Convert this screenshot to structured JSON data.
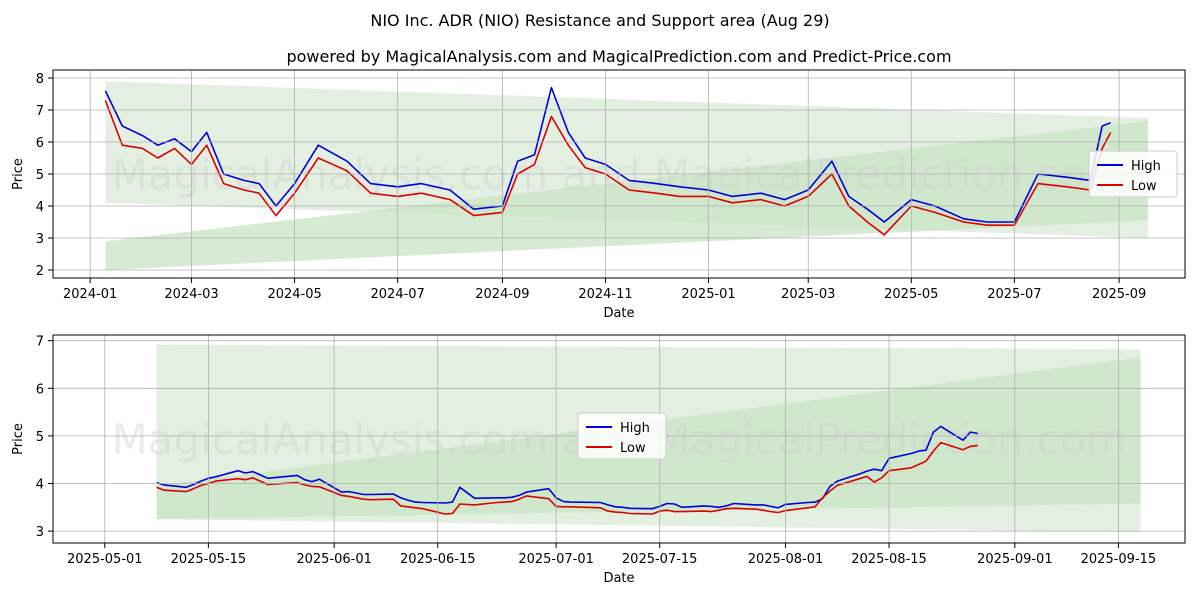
{
  "figure": {
    "title": "NIO Inc. ADR (NIO) Resistance and Support area (Aug 29)",
    "subtitle": "powered by MagicalAnalysis.com and MagicalPrediction.com and Predict-Price.com",
    "watermark": "MagicalAnalysis.com and MagicalPrediction.com"
  },
  "colors": {
    "high": "#0000dd",
    "low": "#dd0000",
    "band_outer": "#dcecd9",
    "band_inner": "#c6e3c2",
    "grid": "#b0b0b0"
  },
  "chart_data": [
    {
      "type": "line",
      "xlabel": "Date",
      "ylabel": "Price",
      "x_ticks": [
        "2024-01",
        "2024-03",
        "2024-05",
        "2024-07",
        "2024-09",
        "2024-11",
        "2025-01",
        "2025-03",
        "2025-05",
        "2025-07",
        "2025-09"
      ],
      "y_ticks": [
        "2",
        "3",
        "4",
        "5",
        "6",
        "7",
        "8"
      ],
      "xlim": [
        "2023-12-10",
        "2025-10-10"
      ],
      "ylim": [
        1.75,
        8.25
      ],
      "grid": true,
      "legend": {
        "position": "right",
        "entries": [
          "High",
          "Low"
        ]
      },
      "bands": [
        {
          "x": [
            "2024-01-10",
            "2025-09-18"
          ],
          "upper": [
            7.9,
            6.75
          ],
          "lower": [
            4.1,
            3.0
          ]
        },
        {
          "x": [
            "2024-01-10",
            "2025-09-18"
          ],
          "upper": [
            2.9,
            6.65
          ],
          "lower": [
            2.0,
            3.55
          ]
        }
      ],
      "series": [
        {
          "name": "High",
          "x": [
            "2024-01-10",
            "2024-01-20",
            "2024-02-01",
            "2024-02-10",
            "2024-02-20",
            "2024-03-01",
            "2024-03-10",
            "2024-03-20",
            "2024-04-01",
            "2024-04-10",
            "2024-04-20",
            "2024-05-01",
            "2024-05-15",
            "2024-06-01",
            "2024-06-15",
            "2024-07-01",
            "2024-07-15",
            "2024-08-01",
            "2024-08-15",
            "2024-09-01",
            "2024-09-10",
            "2024-09-20",
            "2024-09-30",
            "2024-10-10",
            "2024-10-20",
            "2024-11-01",
            "2024-11-15",
            "2024-12-01",
            "2024-12-15",
            "2025-01-01",
            "2025-01-15",
            "2025-02-01",
            "2025-02-15",
            "2025-03-01",
            "2025-03-15",
            "2025-03-25",
            "2025-04-05",
            "2025-04-15",
            "2025-05-01",
            "2025-05-15",
            "2025-06-01",
            "2025-06-15",
            "2025-07-01",
            "2025-07-15",
            "2025-08-01",
            "2025-08-15",
            "2025-08-22",
            "2025-08-27"
          ],
          "values": [
            7.6,
            6.5,
            6.2,
            5.9,
            6.1,
            5.7,
            6.3,
            5.0,
            4.8,
            4.7,
            4.0,
            4.7,
            5.9,
            5.4,
            4.7,
            4.6,
            4.7,
            4.5,
            3.9,
            4.0,
            5.4,
            5.6,
            7.7,
            6.3,
            5.5,
            5.3,
            4.8,
            4.7,
            4.6,
            4.5,
            4.3,
            4.4,
            4.2,
            4.5,
            5.4,
            4.3,
            3.9,
            3.5,
            4.2,
            4.0,
            3.6,
            3.5,
            3.5,
            5.0,
            4.9,
            4.8,
            6.5,
            6.6
          ]
        },
        {
          "name": "Low",
          "x": [
            "2024-01-10",
            "2024-01-20",
            "2024-02-01",
            "2024-02-10",
            "2024-02-20",
            "2024-03-01",
            "2024-03-10",
            "2024-03-20",
            "2024-04-01",
            "2024-04-10",
            "2024-04-20",
            "2024-05-01",
            "2024-05-15",
            "2024-06-01",
            "2024-06-15",
            "2024-07-01",
            "2024-07-15",
            "2024-08-01",
            "2024-08-15",
            "2024-09-01",
            "2024-09-10",
            "2024-09-20",
            "2024-09-30",
            "2024-10-10",
            "2024-10-20",
            "2024-11-01",
            "2024-11-15",
            "2024-12-01",
            "2024-12-15",
            "2025-01-01",
            "2025-01-15",
            "2025-02-01",
            "2025-02-15",
            "2025-03-01",
            "2025-03-15",
            "2025-03-25",
            "2025-04-05",
            "2025-04-15",
            "2025-05-01",
            "2025-05-15",
            "2025-06-01",
            "2025-06-15",
            "2025-07-01",
            "2025-07-15",
            "2025-08-01",
            "2025-08-15",
            "2025-08-22",
            "2025-08-27"
          ],
          "values": [
            7.3,
            5.9,
            5.8,
            5.5,
            5.8,
            5.3,
            5.9,
            4.7,
            4.5,
            4.4,
            3.7,
            4.4,
            5.5,
            5.1,
            4.4,
            4.3,
            4.4,
            4.2,
            3.7,
            3.8,
            5.0,
            5.3,
            6.8,
            5.9,
            5.2,
            5.0,
            4.5,
            4.4,
            4.3,
            4.3,
            4.1,
            4.2,
            4.0,
            4.3,
            5.0,
            4.0,
            3.5,
            3.1,
            4.0,
            3.8,
            3.5,
            3.4,
            3.4,
            4.7,
            4.6,
            4.5,
            5.8,
            6.3
          ]
        }
      ]
    },
    {
      "type": "line",
      "xlabel": "Date",
      "ylabel": "Price",
      "x_ticks": [
        "2025-05-01",
        "2025-05-15",
        "2025-06-01",
        "2025-06-15",
        "2025-07-01",
        "2025-07-15",
        "2025-08-01",
        "2025-08-15",
        "2025-09-01",
        "2025-09-15"
      ],
      "y_ticks": [
        "3",
        "4",
        "5",
        "6",
        "7"
      ],
      "xlim": [
        "2025-04-24",
        "2025-09-24"
      ],
      "ylim": [
        2.75,
        7.12
      ],
      "grid": true,
      "legend": {
        "position": "center",
        "entries": [
          "High",
          "Low"
        ]
      },
      "bands": [
        {
          "x": [
            "2025-05-08",
            "2025-09-18"
          ],
          "upper": [
            6.92,
            6.82
          ],
          "lower": [
            3.25,
            2.98
          ]
        },
        {
          "x": [
            "2025-05-08",
            "2025-09-18"
          ],
          "upper": [
            3.95,
            6.65
          ],
          "lower": [
            3.25,
            3.58
          ]
        }
      ],
      "series": [
        {
          "name": "High",
          "x": [
            "2025-05-08",
            "2025-05-09",
            "2025-05-12",
            "2025-05-13",
            "2025-05-14",
            "2025-05-15",
            "2025-05-16",
            "2025-05-19",
            "2025-05-20",
            "2025-05-21",
            "2025-05-22",
            "2025-05-23",
            "2025-05-27",
            "2025-05-28",
            "2025-05-29",
            "2025-05-30",
            "2025-06-02",
            "2025-06-03",
            "2025-06-04",
            "2025-06-05",
            "2025-06-06",
            "2025-06-09",
            "2025-06-10",
            "2025-06-11",
            "2025-06-12",
            "2025-06-13",
            "2025-06-16",
            "2025-06-17",
            "2025-06-18",
            "2025-06-20",
            "2025-06-23",
            "2025-06-24",
            "2025-06-25",
            "2025-06-26",
            "2025-06-27",
            "2025-06-30",
            "2025-07-01",
            "2025-07-02",
            "2025-07-03",
            "2025-07-07",
            "2025-07-08",
            "2025-07-09",
            "2025-07-10",
            "2025-07-11",
            "2025-07-14",
            "2025-07-15",
            "2025-07-16",
            "2025-07-17",
            "2025-07-18",
            "2025-07-21",
            "2025-07-22",
            "2025-07-23",
            "2025-07-24",
            "2025-07-25",
            "2025-07-28",
            "2025-07-29",
            "2025-07-30",
            "2025-07-31",
            "2025-08-01",
            "2025-08-04",
            "2025-08-05",
            "2025-08-06",
            "2025-08-07",
            "2025-08-08",
            "2025-08-11",
            "2025-08-12",
            "2025-08-13",
            "2025-08-14",
            "2025-08-15",
            "2025-08-18",
            "2025-08-19",
            "2025-08-20",
            "2025-08-21",
            "2025-08-22",
            "2025-08-25",
            "2025-08-26",
            "2025-08-27"
          ],
          "values": [
            4.02,
            3.97,
            3.92,
            3.98,
            4.05,
            4.11,
            4.14,
            4.27,
            4.22,
            4.25,
            4.18,
            4.11,
            4.17,
            4.08,
            4.04,
            4.09,
            3.82,
            3.83,
            3.8,
            3.77,
            3.77,
            3.78,
            3.7,
            3.65,
            3.61,
            3.6,
            3.59,
            3.61,
            3.92,
            3.69,
            3.7,
            3.7,
            3.71,
            3.75,
            3.82,
            3.89,
            3.7,
            3.62,
            3.61,
            3.6,
            3.55,
            3.51,
            3.5,
            3.48,
            3.47,
            3.52,
            3.58,
            3.57,
            3.5,
            3.53,
            3.52,
            3.5,
            3.53,
            3.58,
            3.55,
            3.55,
            3.52,
            3.49,
            3.56,
            3.6,
            3.61,
            3.68,
            3.94,
            4.05,
            4.2,
            4.26,
            4.3,
            4.27,
            4.53,
            4.63,
            4.68,
            4.7,
            5.08,
            5.2,
            4.91,
            5.08,
            5.05
          ]
        },
        {
          "name": "Low",
          "x": [
            "2025-05-08",
            "2025-05-09",
            "2025-05-12",
            "2025-05-13",
            "2025-05-14",
            "2025-05-15",
            "2025-05-16",
            "2025-05-19",
            "2025-05-20",
            "2025-05-21",
            "2025-05-22",
            "2025-05-23",
            "2025-05-27",
            "2025-05-28",
            "2025-05-29",
            "2025-05-30",
            "2025-06-02",
            "2025-06-03",
            "2025-06-04",
            "2025-06-05",
            "2025-06-06",
            "2025-06-09",
            "2025-06-10",
            "2025-06-11",
            "2025-06-12",
            "2025-06-13",
            "2025-06-16",
            "2025-06-17",
            "2025-06-18",
            "2025-06-20",
            "2025-06-23",
            "2025-06-24",
            "2025-06-25",
            "2025-06-26",
            "2025-06-27",
            "2025-06-30",
            "2025-07-01",
            "2025-07-02",
            "2025-07-03",
            "2025-07-07",
            "2025-07-08",
            "2025-07-09",
            "2025-07-10",
            "2025-07-11",
            "2025-07-14",
            "2025-07-15",
            "2025-07-16",
            "2025-07-17",
            "2025-07-18",
            "2025-07-21",
            "2025-07-22",
            "2025-07-23",
            "2025-07-24",
            "2025-07-25",
            "2025-07-28",
            "2025-07-29",
            "2025-07-30",
            "2025-07-31",
            "2025-08-01",
            "2025-08-04",
            "2025-08-05",
            "2025-08-06",
            "2025-08-07",
            "2025-08-08",
            "2025-08-11",
            "2025-08-12",
            "2025-08-13",
            "2025-08-14",
            "2025-08-15",
            "2025-08-18",
            "2025-08-19",
            "2025-08-20",
            "2025-08-21",
            "2025-08-22",
            "2025-08-25",
            "2025-08-26",
            "2025-08-27"
          ],
          "values": [
            3.92,
            3.86,
            3.83,
            3.89,
            3.96,
            4.0,
            4.05,
            4.1,
            4.08,
            4.12,
            4.05,
            3.98,
            4.02,
            3.97,
            3.94,
            3.93,
            3.75,
            3.73,
            3.7,
            3.67,
            3.66,
            3.67,
            3.53,
            3.51,
            3.49,
            3.47,
            3.36,
            3.37,
            3.57,
            3.55,
            3.6,
            3.61,
            3.62,
            3.67,
            3.74,
            3.68,
            3.52,
            3.51,
            3.51,
            3.49,
            3.42,
            3.4,
            3.39,
            3.37,
            3.36,
            3.42,
            3.44,
            3.41,
            3.41,
            3.42,
            3.41,
            3.44,
            3.47,
            3.48,
            3.46,
            3.44,
            3.41,
            3.39,
            3.43,
            3.49,
            3.51,
            3.7,
            3.84,
            3.96,
            4.1,
            4.15,
            4.03,
            4.12,
            4.27,
            4.33,
            4.4,
            4.47,
            4.68,
            4.86,
            4.71,
            4.78,
            4.8
          ]
        }
      ]
    }
  ]
}
